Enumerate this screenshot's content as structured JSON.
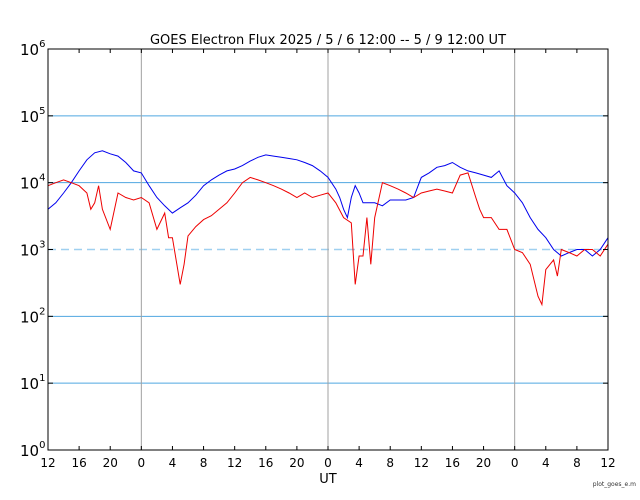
{
  "chart_data": {
    "type": "line",
    "title": "GOES Electron Flux  2025 / 5 / 6  12:00 -- 5 / 9  12:00   UT",
    "xlabel": "UT",
    "ylabel": "",
    "credit": "plot_goes_e.m",
    "yscale": "log",
    "ylim": [
      1,
      1000000
    ],
    "xlim": [
      0,
      72
    ],
    "y_ticks": [
      {
        "base": "10",
        "exp": "0",
        "value": 1
      },
      {
        "base": "10",
        "exp": "1",
        "value": 10
      },
      {
        "base": "10",
        "exp": "2",
        "value": 100
      },
      {
        "base": "10",
        "exp": "3",
        "value": 1000
      },
      {
        "base": "10",
        "exp": "4",
        "value": 10000
      },
      {
        "base": "10",
        "exp": "5",
        "value": 100000
      },
      {
        "base": "10",
        "exp": "6",
        "value": 1000000
      }
    ],
    "x_tick_labels": [
      "12",
      "16",
      "20",
      "0",
      "4",
      "8",
      "12",
      "16",
      "20",
      "0",
      "4",
      "8",
      "12",
      "16",
      "20",
      "0",
      "4",
      "8",
      "12"
    ],
    "x_tick_hours": [
      0,
      4,
      8,
      12,
      16,
      20,
      24,
      28,
      32,
      36,
      40,
      44,
      48,
      52,
      56,
      60,
      64,
      68,
      72
    ],
    "day_boundaries_hours": [
      12,
      36,
      60
    ],
    "grid": "horizontal at decades, vertical at day boundaries",
    "threshold": {
      "value": 1000,
      "style": "dashed"
    },
    "colors": {
      "blue_series": "#0000ee",
      "red_series": "#ee0000",
      "grid": "#4fa6e0",
      "threshold": "#9fd0f0",
      "day_line": "#a0a0a0"
    },
    "series": [
      {
        "color": "blue",
        "x": [
          0,
          1,
          2,
          3,
          4,
          5,
          6,
          7,
          8,
          9,
          10,
          11,
          12,
          13,
          14,
          15,
          16,
          17,
          18,
          19,
          20,
          21,
          22,
          23,
          24,
          25,
          26,
          27,
          28,
          29,
          30,
          31,
          32,
          33,
          34,
          35,
          36,
          37,
          37.5,
          38,
          38.5,
          39,
          39.5,
          40,
          40.5,
          41,
          42,
          43,
          44,
          45,
          46,
          47,
          48,
          49,
          50,
          51,
          52,
          53,
          54,
          55,
          56,
          57,
          58,
          59,
          60,
          61,
          62,
          63,
          64,
          65,
          66,
          67,
          68,
          69,
          70,
          71,
          72
        ],
        "y": [
          4000,
          5000,
          7000,
          10000,
          15000,
          22000,
          28000,
          30000,
          27000,
          25000,
          20000,
          15000,
          14000,
          9000,
          6000,
          4500,
          3500,
          4200,
          5000,
          6500,
          9000,
          11000,
          13000,
          15000,
          16000,
          18000,
          21000,
          24000,
          26000,
          25000,
          24000,
          23000,
          22000,
          20000,
          18000,
          15000,
          12000,
          8000,
          6000,
          4000,
          3000,
          6000,
          9000,
          7000,
          5000,
          5000,
          5000,
          4500,
          5500,
          5500,
          5500,
          6000,
          12000,
          14000,
          17000,
          18000,
          20000,
          17000,
          15000,
          14000,
          13000,
          12000,
          15000,
          9000,
          7000,
          5000,
          3000,
          2000,
          1500,
          1000,
          800,
          900,
          1000,
          1000,
          800,
          1000,
          1500
        ]
      },
      {
        "color": "red",
        "x": [
          0,
          1,
          2,
          3,
          4,
          5,
          5.5,
          6,
          6.5,
          7,
          8,
          9,
          10,
          11,
          12,
          13,
          14,
          15,
          15.5,
          16,
          17,
          17.5,
          18,
          19,
          20,
          21,
          22,
          23,
          24,
          25,
          26,
          27,
          28,
          29,
          30,
          31,
          32,
          33,
          34,
          35,
          36,
          37,
          38,
          39,
          39.5,
          40,
          40.5,
          41,
          41.5,
          42,
          43,
          44,
          45,
          46,
          47,
          48,
          49,
          50,
          51,
          52,
          53,
          54,
          55,
          55.5,
          56,
          57,
          58,
          59,
          60,
          61,
          62,
          63,
          63.5,
          64,
          65,
          65.5,
          66,
          67,
          68,
          69,
          70,
          71,
          72
        ],
        "y": [
          9000,
          10000,
          11000,
          10000,
          9000,
          7000,
          4000,
          5000,
          9000,
          4000,
          2000,
          7000,
          6000,
          5500,
          6000,
          5000,
          2000,
          3500,
          1500,
          1500,
          300,
          600,
          1600,
          2200,
          2800,
          3200,
          4000,
          5000,
          7000,
          10000,
          12000,
          11000,
          10000,
          9000,
          8000,
          7000,
          6000,
          7000,
          6000,
          6500,
          7000,
          5000,
          3000,
          2500,
          300,
          800,
          800,
          3000,
          600,
          3000,
          10000,
          9000,
          8000,
          7000,
          6000,
          7000,
          7500,
          8000,
          7500,
          7000,
          13000,
          14000,
          6000,
          4000,
          3000,
          3000,
          2000,
          2000,
          1000,
          900,
          600,
          200,
          150,
          500,
          700,
          400,
          1000,
          900,
          800,
          1000,
          1000,
          800,
          1200
        ]
      }
    ]
  }
}
